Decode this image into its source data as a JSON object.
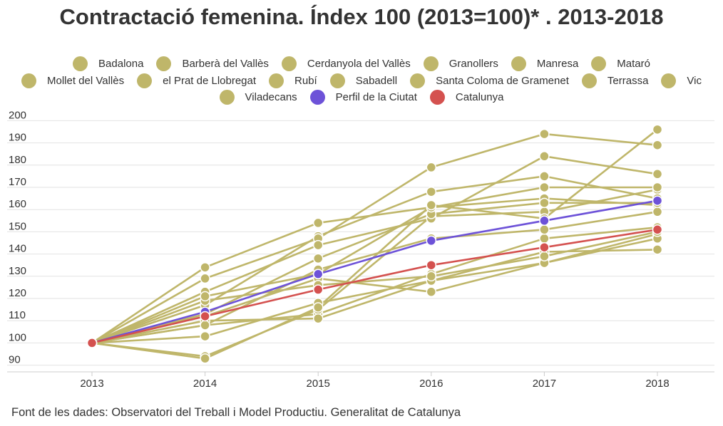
{
  "title": "Contractació femenina. Índex 100 (2013=100)* . 2013-2018",
  "source": "Font de les dades: Observatori del Treball i Model Productiu. Generalitat de Catalunya",
  "colors": {
    "municipality": "#bfb66a",
    "perfil": "#6d52d8",
    "catalunya": "#d4514f",
    "grid": "#e2e2e2",
    "axis": "#cccccc"
  },
  "chart_data": {
    "type": "line",
    "title": "Contractació femenina. Índex 100 (2013=100)* . 2013-2018",
    "xlabel": "",
    "ylabel": "",
    "x": [
      "2013",
      "2014",
      "2015",
      "2016",
      "2017",
      "2018"
    ],
    "yticks": [
      90,
      100,
      110,
      120,
      130,
      140,
      150,
      160,
      170,
      180,
      190,
      200
    ],
    "ylim": [
      87,
      203
    ],
    "grid": true,
    "legend_position": "top",
    "series": [
      {
        "name": "Badalona",
        "color": "#bfb66a",
        "values": [
          100,
          108,
          113,
          131,
          147,
          152
        ]
      },
      {
        "name": "Barberà del Vallès",
        "color": "#bfb66a",
        "values": [
          100,
          134,
          154,
          161,
          165,
          162
        ]
      },
      {
        "name": "Cerdanyola del Vallès",
        "color": "#bfb66a",
        "values": [
          100,
          94,
          115,
          157,
          159,
          169
        ]
      },
      {
        "name": "Granollers",
        "color": "#bfb66a",
        "values": [
          100,
          117,
          148,
          168,
          175,
          165
        ]
      },
      {
        "name": "Manresa",
        "color": "#bfb66a",
        "values": [
          100,
          129,
          147,
          179,
          194,
          189
        ]
      },
      {
        "name": "Mataró",
        "color": "#bfb66a",
        "values": [
          100,
          112,
          129,
          123,
          136,
          149
        ]
      },
      {
        "name": "Mollet del Vallès",
        "color": "#bfb66a",
        "values": [
          100,
          123,
          144,
          156,
          184,
          176
        ]
      },
      {
        "name": "el Prat de Llobregat",
        "color": "#bfb66a",
        "values": [
          100,
          103,
          118,
          128,
          141,
          142
        ]
      },
      {
        "name": "Rubí",
        "color": "#bfb66a",
        "values": [
          100,
          110,
          111,
          128,
          136,
          147
        ]
      },
      {
        "name": "Sabadell",
        "color": "#bfb66a",
        "values": [
          100,
          108,
          133,
          147,
          151,
          159
        ]
      },
      {
        "name": "Santa Coloma de Gramenet",
        "color": "#bfb66a",
        "values": [
          100,
          119,
          126,
          130,
          139,
          150
        ]
      },
      {
        "name": "Terrassa",
        "color": "#bfb66a",
        "values": [
          100,
          113,
          138,
          158,
          163,
          163
        ]
      },
      {
        "name": "Vic",
        "color": "#bfb66a",
        "values": [
          100,
          121,
          131,
          161,
          170,
          170
        ]
      },
      {
        "name": "Viladecans",
        "color": "#bfb66a",
        "values": [
          100,
          93,
          116,
          162,
          156,
          196
        ]
      },
      {
        "name": "Perfil de la Ciutat",
        "color": "#6d52d8",
        "values": [
          100,
          114,
          131,
          146,
          155,
          164
        ]
      },
      {
        "name": "Catalunya",
        "color": "#d4514f",
        "values": [
          100,
          112,
          124,
          135,
          143,
          151
        ]
      }
    ]
  }
}
